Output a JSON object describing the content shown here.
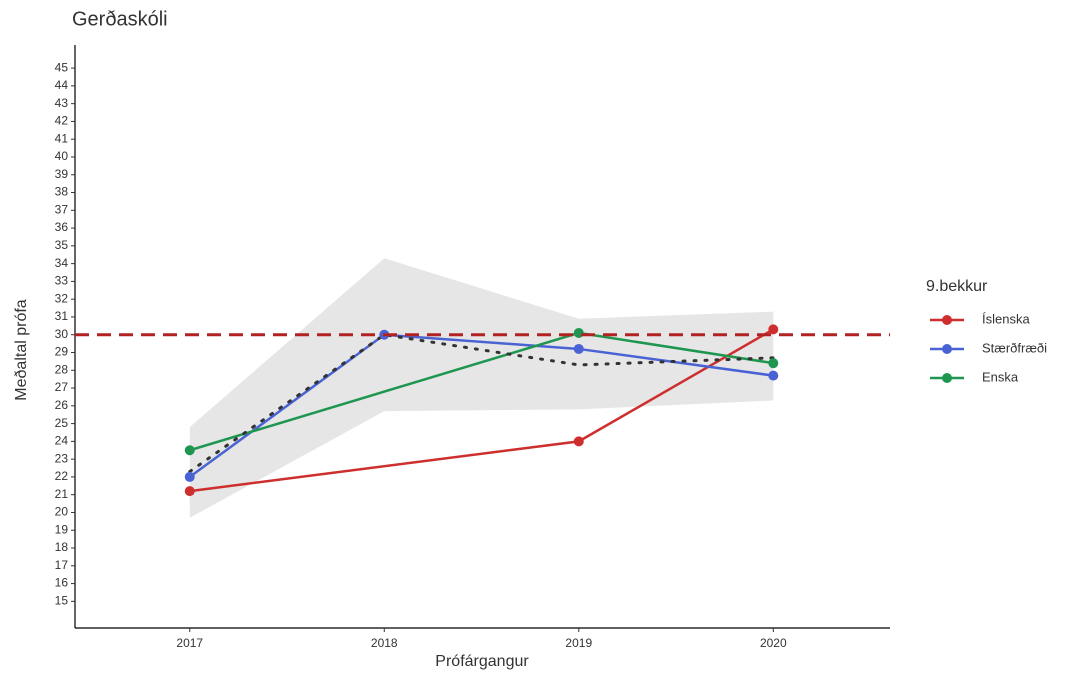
{
  "chart_data": {
    "type": "line",
    "title": "Gerðaskóli",
    "x_label": "Prófárgangur",
    "y_label": "Meðaltal prófa",
    "legend_title": "9.bekkur",
    "legend_position": "right",
    "xlim": [
      2016.41,
      2020.6
    ],
    "xticks": [
      2017,
      2018,
      2019,
      2020
    ],
    "ylim": [
      13.5,
      46.3
    ],
    "yticks": [
      15,
      16,
      17,
      18,
      19,
      20,
      21,
      22,
      23,
      24,
      25,
      26,
      27,
      28,
      29,
      30,
      31,
      32,
      33,
      34,
      35,
      36,
      37,
      38,
      39,
      40,
      41,
      42,
      43,
      44,
      45
    ],
    "series": [
      {
        "name": "Íslenska",
        "color": "#cf2e2e",
        "x": [
          2017,
          2019,
          2020
        ],
        "values": [
          21.2,
          24.0,
          30.3
        ]
      },
      {
        "name": "Stærðfræði",
        "color": "#4a63d4",
        "x": [
          2017,
          2018,
          2019,
          2020
        ],
        "values": [
          22.0,
          30.0,
          29.2,
          27.7
        ]
      },
      {
        "name": "Enska",
        "color": "#1f9650",
        "x": [
          2017,
          2019,
          2020
        ],
        "values": [
          23.5,
          30.1,
          28.4
        ]
      }
    ],
    "mean_line": {
      "color": "#333333",
      "x": [
        2017,
        2018,
        2019,
        2020
      ],
      "values": [
        22.3,
        30.0,
        28.3,
        28.7
      ]
    },
    "ribbon": {
      "color": "#e6e6e6",
      "x": [
        2017,
        2018,
        2019,
        2020
      ],
      "upper": [
        24.8,
        34.3,
        30.9,
        31.3
      ],
      "lower": [
        19.7,
        25.7,
        25.8,
        26.3
      ]
    },
    "reference_line": {
      "value": 30,
      "color": "#b22222"
    }
  }
}
